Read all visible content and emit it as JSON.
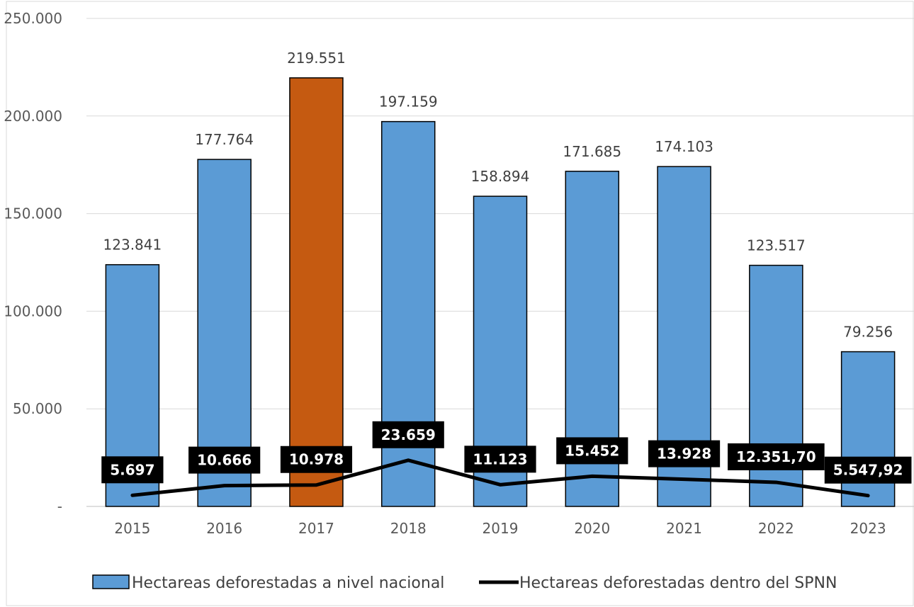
{
  "chart_data": {
    "type": "bar",
    "categories": [
      "2015",
      "2016",
      "2017",
      "2018",
      "2019",
      "2020",
      "2021",
      "2022",
      "2023"
    ],
    "series": [
      {
        "name": "Hectareas deforestadas a nivel nacional",
        "kind": "bar",
        "values": [
          123841,
          177764,
          219551,
          197159,
          158894,
          171685,
          174103,
          123517,
          79256
        ],
        "labels": [
          "123.841",
          "177.764",
          "219.551",
          "197.159",
          "158.894",
          "171.685",
          "174.103",
          "123.517",
          "79.256"
        ],
        "color": "#5B9BD5",
        "highlight_index": 2,
        "highlight_color": "#C55A11"
      },
      {
        "name": "Hectareas deforestadas dentro del SPNN",
        "kind": "line",
        "values": [
          5697,
          10666,
          10978,
          23659,
          11123,
          15452,
          13928,
          12351.7,
          5547.92
        ],
        "labels": [
          "5.697",
          "10.666",
          "10.978",
          "23.659",
          "11.123",
          "15.452",
          "13.928",
          "12.351,70",
          "5.547,92"
        ],
        "color": "#000000"
      }
    ],
    "yticks": [
      "-",
      "50.000",
      "100.000",
      "150.000",
      "200.000",
      "250.000"
    ],
    "ylim": [
      0,
      250000
    ],
    "grid": true,
    "legend_position": "bottom"
  }
}
